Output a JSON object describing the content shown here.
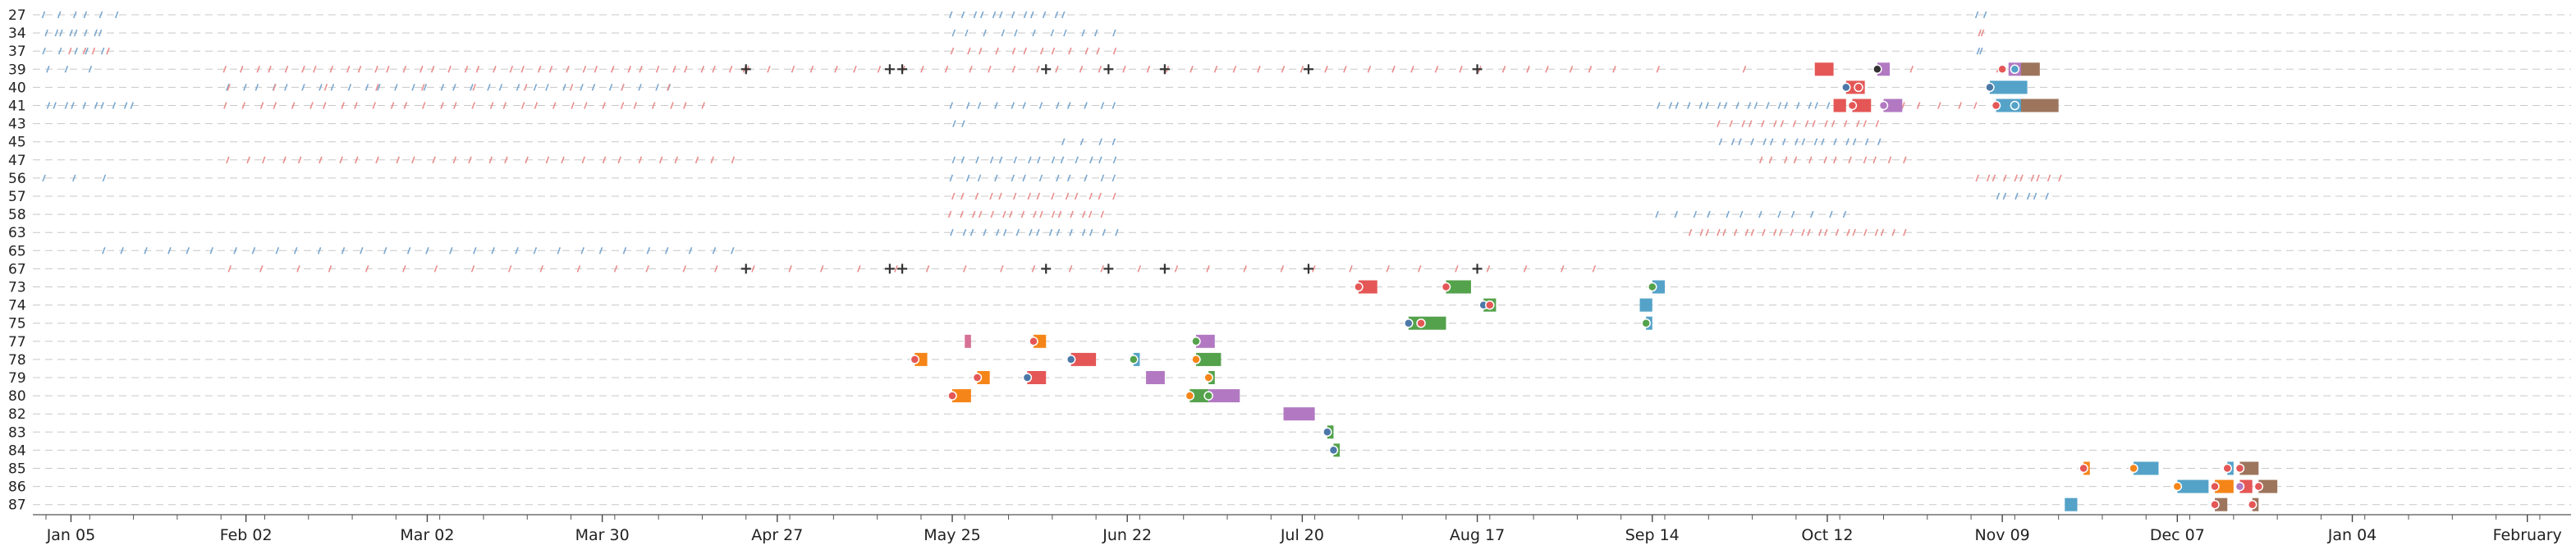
{
  "chart_data": {
    "type": "timeline",
    "title": "",
    "xlabel": "",
    "ylabel": "",
    "grid": true,
    "x_ticks": [
      "Jan 05",
      "Feb 02",
      "Mar 02",
      "Mar 30",
      "Apr 27",
      "May 25",
      "Jun 22",
      "Jul 20",
      "Aug 17",
      "Sep 14",
      "Oct 12",
      "Nov 09",
      "Dec 07",
      "Jan 04",
      "February"
    ],
    "xlim": [
      "Jan 01",
      "Feb 08"
    ],
    "categories": [
      "27",
      "34",
      "37",
      "39",
      "40",
      "41",
      "43",
      "45",
      "47",
      "56",
      "57",
      "58",
      "63",
      "65",
      "67",
      "73",
      "74",
      "75",
      "77",
      "78",
      "79",
      "80",
      "82",
      "83",
      "84",
      "85",
      "86",
      "87"
    ],
    "colors": {
      "red": "#e45756",
      "blue": "#4c78a8",
      "teal": "#54a2c8",
      "green": "#54a24b",
      "orange": "#f58518",
      "purple": "#b279c2",
      "brown": "#9d755d",
      "pink": "#d67195",
      "mark": "#333333",
      "tick_red": "#e98d8b",
      "tick_blue": "#7aa7cf"
    },
    "bars": [
      {
        "row": "39",
        "start": "Oct 10",
        "end": "Oct 13",
        "color": "red"
      },
      {
        "row": "39",
        "start": "Oct 20",
        "end": "Oct 22",
        "color": "purple"
      },
      {
        "row": "39",
        "start": "Nov 10",
        "end": "Nov 12",
        "color": "purple"
      },
      {
        "row": "39",
        "start": "Nov 12",
        "end": "Nov 15",
        "color": "brown"
      },
      {
        "row": "40",
        "start": "Oct 15",
        "end": "Oct 18",
        "color": "red"
      },
      {
        "row": "40",
        "start": "Nov 07",
        "end": "Nov 13",
        "color": "teal"
      },
      {
        "row": "41",
        "start": "Oct 13",
        "end": "Oct 15",
        "color": "red"
      },
      {
        "row": "41",
        "start": "Oct 16",
        "end": "Oct 19",
        "color": "red"
      },
      {
        "row": "41",
        "start": "Oct 21",
        "end": "Oct 24",
        "color": "purple"
      },
      {
        "row": "41",
        "start": "Nov 08",
        "end": "Nov 12",
        "color": "teal"
      },
      {
        "row": "41",
        "start": "Nov 12",
        "end": "Nov 18",
        "color": "brown"
      },
      {
        "row": "73",
        "start": "Jul 29",
        "end": "Aug 01",
        "color": "red"
      },
      {
        "row": "73",
        "start": "Aug 12",
        "end": "Aug 16",
        "color": "green"
      },
      {
        "row": "73",
        "start": "Sep 14",
        "end": "Sep 16",
        "color": "teal"
      },
      {
        "row": "74",
        "start": "Aug 18",
        "end": "Aug 20",
        "color": "green"
      },
      {
        "row": "74",
        "start": "Sep 12",
        "end": "Sep 14",
        "color": "teal"
      },
      {
        "row": "75",
        "start": "Aug 06",
        "end": "Aug 12",
        "color": "green"
      },
      {
        "row": "75",
        "start": "Sep 13",
        "end": "Sep 14",
        "color": "teal"
      },
      {
        "row": "77",
        "start": "May 27",
        "end": "May 28",
        "color": "pink"
      },
      {
        "row": "77",
        "start": "Jun 07",
        "end": "Jun 09",
        "color": "orange"
      },
      {
        "row": "77",
        "start": "Jul 03",
        "end": "Jul 06",
        "color": "purple"
      },
      {
        "row": "78",
        "start": "May 19",
        "end": "May 21",
        "color": "orange"
      },
      {
        "row": "78",
        "start": "Jun 13",
        "end": "Jun 17",
        "color": "red"
      },
      {
        "row": "78",
        "start": "Jun 23",
        "end": "Jun 24",
        "color": "teal"
      },
      {
        "row": "78",
        "start": "Jul 03",
        "end": "Jul 07",
        "color": "green"
      },
      {
        "row": "79",
        "start": "May 29",
        "end": "May 31",
        "color": "orange"
      },
      {
        "row": "79",
        "start": "Jun 06",
        "end": "Jun 09",
        "color": "red"
      },
      {
        "row": "79",
        "start": "Jun 25",
        "end": "Jun 28",
        "color": "purple"
      },
      {
        "row": "79",
        "start": "Jul 05",
        "end": "Jul 06",
        "color": "green"
      },
      {
        "row": "80",
        "start": "May 25",
        "end": "May 28",
        "color": "orange"
      },
      {
        "row": "80",
        "start": "Jul 02",
        "end": "Jul 05",
        "color": "green"
      },
      {
        "row": "80",
        "start": "Jul 05",
        "end": "Jul 10",
        "color": "purple"
      },
      {
        "row": "82",
        "start": "Jul 17",
        "end": "Jul 22",
        "color": "purple"
      },
      {
        "row": "83",
        "start": "Jul 24",
        "end": "Jul 25",
        "color": "green"
      },
      {
        "row": "84",
        "start": "Jul 25",
        "end": "Jul 26",
        "color": "green"
      },
      {
        "row": "85",
        "start": "Nov 22",
        "end": "Nov 23",
        "color": "orange"
      },
      {
        "row": "85",
        "start": "Nov 30",
        "end": "Dec 04",
        "color": "teal"
      },
      {
        "row": "85",
        "start": "Dec 15",
        "end": "Dec 16",
        "color": "teal"
      },
      {
        "row": "85",
        "start": "Dec 17",
        "end": "Dec 20",
        "color": "brown"
      },
      {
        "row": "86",
        "start": "Dec 07",
        "end": "Dec 12",
        "color": "teal"
      },
      {
        "row": "86",
        "start": "Dec 13",
        "end": "Dec 16",
        "color": "orange"
      },
      {
        "row": "86",
        "start": "Dec 17",
        "end": "Dec 19",
        "color": "red"
      },
      {
        "row": "86",
        "start": "Dec 20",
        "end": "Dec 23",
        "color": "brown"
      },
      {
        "row": "87",
        "start": "Nov 19",
        "end": "Nov 21",
        "color": "teal"
      },
      {
        "row": "87",
        "start": "Dec 13",
        "end": "Dec 15",
        "color": "brown"
      },
      {
        "row": "87",
        "start": "Dec 19",
        "end": "Dec 20",
        "color": "brown"
      }
    ],
    "dots": [
      {
        "row": "39",
        "date": "Oct 20",
        "color": "mark"
      },
      {
        "row": "39",
        "date": "Nov 09",
        "color": "red"
      },
      {
        "row": "39",
        "date": "Nov 11",
        "color": "teal"
      },
      {
        "row": "40",
        "date": "Oct 15",
        "color": "blue"
      },
      {
        "row": "40",
        "date": "Oct 17",
        "color": "red"
      },
      {
        "row": "40",
        "date": "Nov 07",
        "color": "blue"
      },
      {
        "row": "41",
        "date": "Oct 16",
        "color": "red"
      },
      {
        "row": "41",
        "date": "Oct 21",
        "color": "purple"
      },
      {
        "row": "41",
        "date": "Nov 08",
        "color": "red"
      },
      {
        "row": "41",
        "date": "Nov 11",
        "color": "teal"
      },
      {
        "row": "73",
        "date": "Jul 29",
        "color": "red"
      },
      {
        "row": "73",
        "date": "Aug 12",
        "color": "red"
      },
      {
        "row": "73",
        "date": "Sep 14",
        "color": "green"
      },
      {
        "row": "74",
        "date": "Aug 18",
        "color": "blue"
      },
      {
        "row": "74",
        "date": "Aug 19",
        "color": "red"
      },
      {
        "row": "75",
        "date": "Aug 06",
        "color": "blue"
      },
      {
        "row": "75",
        "date": "Aug 08",
        "color": "red"
      },
      {
        "row": "75",
        "date": "Sep 13",
        "color": "green"
      },
      {
        "row": "77",
        "date": "Jun 07",
        "color": "red"
      },
      {
        "row": "77",
        "date": "Jul 03",
        "color": "green"
      },
      {
        "row": "78",
        "date": "May 19",
        "color": "red"
      },
      {
        "row": "78",
        "date": "Jun 13",
        "color": "blue"
      },
      {
        "row": "78",
        "date": "Jun 23",
        "color": "green"
      },
      {
        "row": "78",
        "date": "Jul 03",
        "color": "orange"
      },
      {
        "row": "79",
        "date": "May 29",
        "color": "red"
      },
      {
        "row": "79",
        "date": "Jun 06",
        "color": "blue"
      },
      {
        "row": "79",
        "date": "Jul 05",
        "color": "orange"
      },
      {
        "row": "80",
        "date": "May 25",
        "color": "red"
      },
      {
        "row": "80",
        "date": "Jul 02",
        "color": "orange"
      },
      {
        "row": "80",
        "date": "Jul 05",
        "color": "green"
      },
      {
        "row": "83",
        "date": "Jul 24",
        "color": "blue"
      },
      {
        "row": "84",
        "date": "Jul 25",
        "color": "blue"
      },
      {
        "row": "85",
        "date": "Nov 22",
        "color": "red"
      },
      {
        "row": "85",
        "date": "Nov 30",
        "color": "orange"
      },
      {
        "row": "85",
        "date": "Dec 15",
        "color": "red"
      },
      {
        "row": "85",
        "date": "Dec 17",
        "color": "red"
      },
      {
        "row": "86",
        "date": "Dec 07",
        "color": "orange"
      },
      {
        "row": "86",
        "date": "Dec 13",
        "color": "red"
      },
      {
        "row": "86",
        "date": "Dec 17",
        "color": "purple"
      },
      {
        "row": "86",
        "date": "Dec 20",
        "color": "red"
      },
      {
        "row": "87",
        "date": "Dec 13",
        "color": "red"
      },
      {
        "row": "87",
        "date": "Dec 19",
        "color": "red"
      }
    ],
    "crosses": [
      {
        "row": "39",
        "date": "Apr 22"
      },
      {
        "row": "39",
        "date": "May 15"
      },
      {
        "row": "39",
        "date": "May 17"
      },
      {
        "row": "39",
        "date": "Jun 09"
      },
      {
        "row": "39",
        "date": "Jun 19"
      },
      {
        "row": "39",
        "date": "Jun 28"
      },
      {
        "row": "39",
        "date": "Jul 21"
      },
      {
        "row": "39",
        "date": "Aug 17"
      },
      {
        "row": "67",
        "date": "Apr 22"
      },
      {
        "row": "67",
        "date": "May 15"
      },
      {
        "row": "67",
        "date": "May 17"
      },
      {
        "row": "67",
        "date": "Jun 09"
      },
      {
        "row": "67",
        "date": "Jun 19"
      },
      {
        "row": "67",
        "date": "Jun 28"
      },
      {
        "row": "67",
        "date": "Jul 21"
      },
      {
        "row": "67",
        "date": "Aug 17"
      }
    ],
    "tick_runs": [
      {
        "row": "27",
        "start": "Jan 01",
        "end": "Jan 12",
        "color": "blue",
        "count": 6
      },
      {
        "row": "27",
        "start": "May 25",
        "end": "Jun 12",
        "color": "blue",
        "count": 12
      },
      {
        "row": "27",
        "start": "Nov 05",
        "end": "Nov 06",
        "color": "blue",
        "count": 2
      },
      {
        "row": "34",
        "start": "Jan 01",
        "end": "Jan 10",
        "color": "blue",
        "count": 8
      },
      {
        "row": "34",
        "start": "May 25",
        "end": "Jun 20",
        "color": "blue",
        "count": 11
      },
      {
        "row": "34",
        "start": "Nov 05",
        "end": "Nov 06",
        "color": "red",
        "count": 2
      },
      {
        "row": "37",
        "start": "Jan 01",
        "end": "Jan 10",
        "color": "blue",
        "count": 5
      },
      {
        "row": "37",
        "start": "Jan 05",
        "end": "Jan 11",
        "color": "red",
        "count": 4
      },
      {
        "row": "37",
        "start": "May 25",
        "end": "Jun 20",
        "color": "red",
        "count": 12
      },
      {
        "row": "37",
        "start": "Nov 05",
        "end": "Nov 06",
        "color": "blue",
        "count": 2
      },
      {
        "row": "39",
        "start": "Jan 01",
        "end": "Jan 08",
        "color": "blue",
        "count": 3
      },
      {
        "row": "39",
        "start": "Jan 30",
        "end": "Apr 22",
        "color": "red",
        "count": 36
      },
      {
        "row": "39",
        "start": "Apr 22",
        "end": "Sep 08",
        "color": "red",
        "count": 40
      },
      {
        "row": "39",
        "start": "Sep 15",
        "end": "Nov 08",
        "color": "red",
        "count": 5
      },
      {
        "row": "40",
        "start": "Jan 30",
        "end": "Apr 10",
        "color": "blue",
        "count": 30
      },
      {
        "row": "40",
        "start": "Jan 30",
        "end": "Apr 10",
        "color": "red",
        "count": 10
      },
      {
        "row": "41",
        "start": "Jan 01",
        "end": "Jan 15",
        "color": "blue",
        "count": 10
      },
      {
        "row": "41",
        "start": "Jan 30",
        "end": "Apr 15",
        "color": "red",
        "count": 30
      },
      {
        "row": "41",
        "start": "May 25",
        "end": "Jun 20",
        "color": "blue",
        "count": 12
      },
      {
        "row": "41",
        "start": "Sep 15",
        "end": "Oct 12",
        "color": "blue",
        "count": 18
      },
      {
        "row": "41",
        "start": "Oct 24",
        "end": "Nov 08",
        "color": "red",
        "count": 6
      },
      {
        "row": "43",
        "start": "May 25",
        "end": "May 27",
        "color": "blue",
        "count": 2
      },
      {
        "row": "43",
        "start": "Sep 25",
        "end": "Oct 20",
        "color": "red",
        "count": 16
      },
      {
        "row": "45",
        "start": "Jun 12",
        "end": "Jun 20",
        "color": "blue",
        "count": 4
      },
      {
        "row": "45",
        "start": "Sep 25",
        "end": "Oct 20",
        "color": "blue",
        "count": 16
      },
      {
        "row": "47",
        "start": "Jan 30",
        "end": "Apr 20",
        "color": "red",
        "count": 28
      },
      {
        "row": "47",
        "start": "May 25",
        "end": "Jun 20",
        "color": "blue",
        "count": 14
      },
      {
        "row": "47",
        "start": "Oct 01",
        "end": "Oct 24",
        "color": "red",
        "count": 12
      },
      {
        "row": "56",
        "start": "Jan 01",
        "end": "Jan 10",
        "color": "blue",
        "count": 3
      },
      {
        "row": "56",
        "start": "May 25",
        "end": "Jun 20",
        "color": "blue",
        "count": 12
      },
      {
        "row": "56",
        "start": "Nov 05",
        "end": "Nov 18",
        "color": "red",
        "count": 10
      },
      {
        "row": "57",
        "start": "May 25",
        "end": "Jun 20",
        "color": "red",
        "count": 14
      },
      {
        "row": "57",
        "start": "Nov 08",
        "end": "Nov 16",
        "color": "blue",
        "count": 6
      },
      {
        "row": "58",
        "start": "May 25",
        "end": "Jun 18",
        "color": "red",
        "count": 16
      },
      {
        "row": "58",
        "start": "Sep 15",
        "end": "Oct 15",
        "color": "blue",
        "count": 12
      },
      {
        "row": "63",
        "start": "May 25",
        "end": "Jun 20",
        "color": "blue",
        "count": 16
      },
      {
        "row": "63",
        "start": "Sep 20",
        "end": "Oct 24",
        "color": "red",
        "count": 24
      },
      {
        "row": "65",
        "start": "Jan 10",
        "end": "Apr 20",
        "color": "blue",
        "count": 30
      },
      {
        "row": "67",
        "start": "Jan 30",
        "end": "Sep 05",
        "color": "red",
        "count": 40
      }
    ]
  }
}
